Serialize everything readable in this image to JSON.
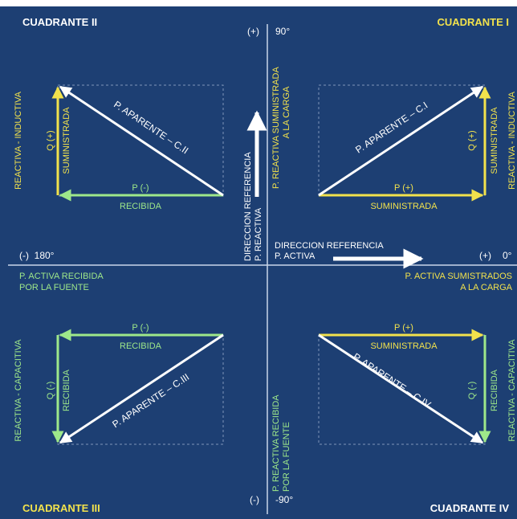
{
  "colors": {
    "background": "#1d3f73",
    "axis": "#c9d6ea",
    "white": "#ffffff",
    "yellow": "#f2e24c",
    "green": "#9ee88a",
    "dashed": "#7f96b8"
  },
  "quadrants": {
    "q1": "CUADRANTE I",
    "q2": "CUADRANTE II",
    "q3": "CUADRANTE III",
    "q4": "CUADRANTE IV"
  },
  "axes": {
    "top_sign": "(+)",
    "top_angle": "90°",
    "bottom_sign": "(-)",
    "bottom_angle": "-90°",
    "left_label": "(-)  180°",
    "right_sign": "(+)",
    "right_angle": "0°",
    "top_label_1": "P. REACTIVA SUMINISTRADA",
    "top_label_2": "A LA CARGA",
    "bottom_label_1": "P. REACTIVA RECIBIDA",
    "bottom_label_2": "POR LA FUENTE",
    "left_label_1": "P. ACTIVA RECIBIDA",
    "left_label_2": "POR LA FUENTE",
    "right_label_1": "P. ACTIVA SUMISTRADOS",
    "right_label_2": "A LA CARGA",
    "ref_active_1": "DIRECCION REFERENCIA",
    "ref_active_2": "P. ACTIVA",
    "ref_reactive_1": "DIRECCION REFERENCIA",
    "ref_reactive_2": "P. REACTIVA"
  },
  "q1": {
    "hypotenuse": "P. APARENTE – C.I",
    "p": "P (+)",
    "p_sub": "SUMINISTRADA",
    "q": "Q (+)",
    "q_sub": "SUMINISTRADA",
    "side": "REACTIVA - INDUCTIVA"
  },
  "q2": {
    "hypotenuse": "P. APARENTE – C.II",
    "p": "P (-)",
    "p_sub": "RECIBIDA",
    "q": "Q (+)",
    "q_sub": "SUMINISTRADA",
    "side": "REACTIVA - INDUCTIVA"
  },
  "q3": {
    "hypotenuse": "P. APARENTE – C.III",
    "p": "P (-)",
    "p_sub": "RECIBIDA",
    "q": "Q (-)",
    "q_sub": "RECIBIDA",
    "side": "REACTIVA - CAPACITIVA"
  },
  "q4": {
    "hypotenuse": "P. APARENTE – C.IV",
    "p": "P (+)",
    "p_sub": "SUMINISTRADA",
    "q": "Q (-)",
    "q_sub": "RECIBIDA",
    "side": "REACTIVA - CAPACITIVA"
  }
}
